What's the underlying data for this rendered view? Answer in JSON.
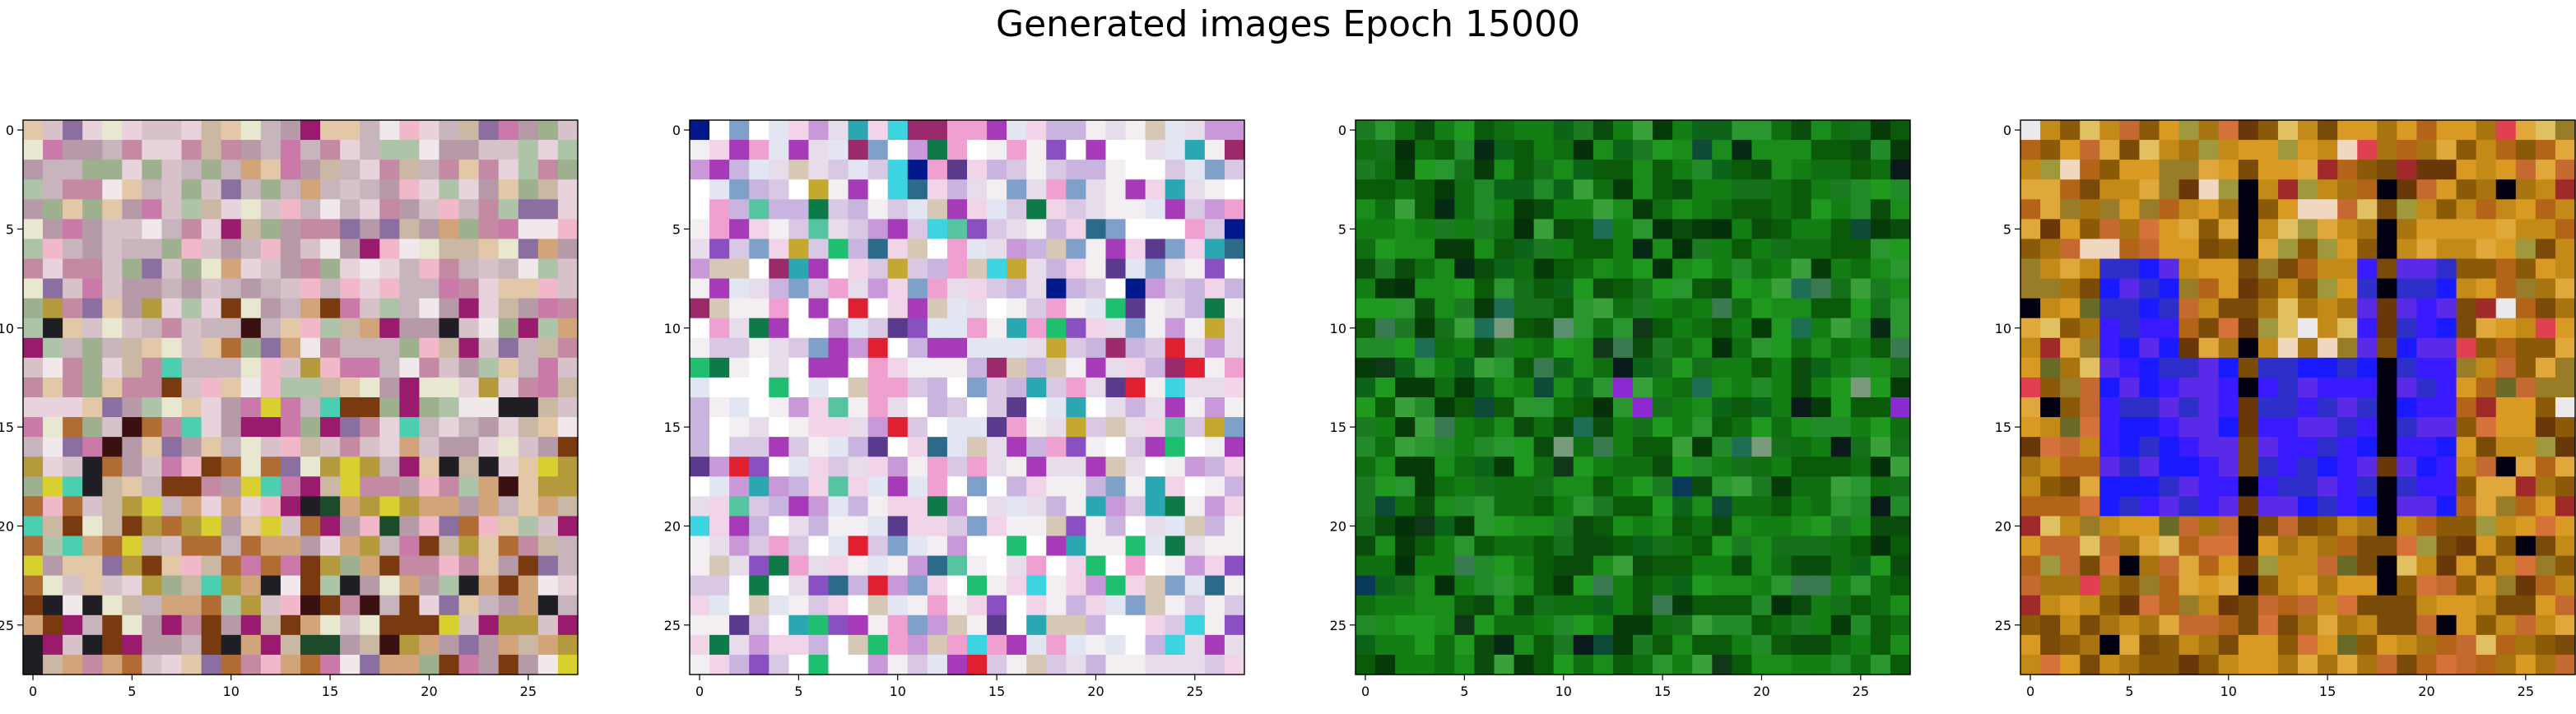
{
  "figure": {
    "title": "Generated images Epoch 15000"
  },
  "chart_data": [
    {
      "type": "heatmap",
      "title": "",
      "xlabel": "",
      "ylabel": "",
      "size": [
        28,
        28
      ],
      "xlim": [
        -0.5,
        27.5
      ],
      "ylim": [
        27.5,
        -0.5
      ],
      "xticks": [
        "0",
        "5",
        "10",
        "15",
        "20",
        "25"
      ],
      "yticks": [
        "0",
        "5",
        "10",
        "15",
        "20",
        "25"
      ],
      "grid": false,
      "legend": "none",
      "palette": [
        "#c8b4bc",
        "#d6c2c8",
        "#e8d2dc",
        "#b69aa8",
        "#cbb8a4",
        "#9fb08e",
        "#c48aa4",
        "#e3c8a8",
        "#8b6fa0",
        "#9a1a6e",
        "#d2a47a",
        "#b06c32",
        "#7a3a10",
        "#e8e8d0",
        "#f0e8ea",
        "#4bcfb0",
        "#d8d030",
        "#3a1010",
        "#1d4a2a",
        "#c97aa8",
        "#b49a3c",
        "#f0b8c8",
        "#aec4a8",
        "#1e1e24"
      ],
      "region_bias": [
        {
          "rows": [
            0,
            8
          ],
          "weights": [
            0.16,
            0.14,
            0.12,
            0.12,
            0.08,
            0.1,
            0.06,
            0.06,
            0.04,
            0.02,
            0.02,
            0.0,
            0.0,
            0.04,
            0.04,
            0.02,
            0.0,
            0.0,
            0.0,
            0.04,
            0.0,
            0.04,
            0.06,
            0.0
          ]
        },
        {
          "rows": [
            9,
            16
          ],
          "weights": [
            0.1,
            0.1,
            0.08,
            0.08,
            0.06,
            0.06,
            0.08,
            0.06,
            0.06,
            0.06,
            0.04,
            0.02,
            0.04,
            0.06,
            0.06,
            0.02,
            0.02,
            0.03,
            0.02,
            0.06,
            0.02,
            0.03,
            0.04,
            0.02
          ]
        },
        {
          "rows": [
            17,
            27
          ],
          "weights": [
            0.06,
            0.06,
            0.04,
            0.06,
            0.08,
            0.04,
            0.06,
            0.08,
            0.04,
            0.05,
            0.12,
            0.12,
            0.08,
            0.04,
            0.02,
            0.01,
            0.03,
            0.03,
            0.02,
            0.04,
            0.08,
            0.04,
            0.04,
            0.04
          ]
        }
      ]
    },
    {
      "type": "heatmap",
      "title": "",
      "xlabel": "",
      "ylabel": "",
      "size": [
        28,
        28
      ],
      "xlim": [
        -0.5,
        27.5
      ],
      "ylim": [
        27.5,
        -0.5
      ],
      "xticks": [
        "0",
        "5",
        "10",
        "15",
        "20",
        "25"
      ],
      "yticks": [
        "0",
        "5",
        "10",
        "15",
        "20",
        "25"
      ],
      "grid": false,
      "legend": "none",
      "palette": [
        "#f2eef2",
        "#e6dcea",
        "#d8c8e4",
        "#c9b4e0",
        "#f2d4e8",
        "#ffffff",
        "#e2e6f2",
        "#d6c8b4",
        "#c898d8",
        "#a63ab8",
        "#8a4fc0",
        "#3cd4e0",
        "#2aa7b0",
        "#00188a",
        "#1ec070",
        "#0e7a4a",
        "#e02030",
        "#9a2a6a",
        "#56c4a0",
        "#f0a0d0",
        "#c4a830",
        "#7fa0c8",
        "#5a3a8c",
        "#2c6a8a"
      ],
      "region_bias": [
        {
          "rows": [
            0,
            8
          ],
          "weights": [
            0.12,
            0.1,
            0.1,
            0.08,
            0.08,
            0.08,
            0.06,
            0.04,
            0.06,
            0.04,
            0.04,
            0.02,
            0.02,
            0.02,
            0.01,
            0.01,
            0.0,
            0.02,
            0.02,
            0.04,
            0.02,
            0.06,
            0.02,
            0.02
          ]
        },
        {
          "rows": [
            9,
            16
          ],
          "weights": [
            0.12,
            0.1,
            0.08,
            0.06,
            0.08,
            0.12,
            0.06,
            0.04,
            0.04,
            0.04,
            0.03,
            0.01,
            0.02,
            0.0,
            0.02,
            0.02,
            0.03,
            0.02,
            0.01,
            0.04,
            0.02,
            0.02,
            0.01,
            0.01
          ]
        },
        {
          "rows": [
            17,
            27
          ],
          "weights": [
            0.14,
            0.1,
            0.08,
            0.06,
            0.08,
            0.12,
            0.08,
            0.04,
            0.06,
            0.02,
            0.02,
            0.02,
            0.02,
            0.0,
            0.02,
            0.01,
            0.01,
            0.01,
            0.01,
            0.04,
            0.01,
            0.02,
            0.01,
            0.01
          ]
        }
      ]
    },
    {
      "type": "heatmap",
      "title": "",
      "xlabel": "",
      "ylabel": "",
      "size": [
        28,
        28
      ],
      "xlim": [
        -0.5,
        27.5
      ],
      "ylim": [
        27.5,
        -0.5
      ],
      "xticks": [
        "0",
        "5",
        "10",
        "15",
        "20",
        "25"
      ],
      "yticks": [
        "0",
        "5",
        "10",
        "15",
        "20",
        "25"
      ],
      "grid": false,
      "legend": "none",
      "palette": [
        "#0a5a0a",
        "#0e6e10",
        "#127e14",
        "#1a8c1a",
        "#1f9a1f",
        "#0a4c0c",
        "#063a08",
        "#238a2a",
        "#2a9630",
        "#0c6418",
        "#1b7a22",
        "#15701a",
        "#04300a",
        "#3a7a50",
        "#1e6e56",
        "#0e4a38",
        "#062a14",
        "#5a9070",
        "#103818",
        "#7a9a7c",
        "#0a1a1a",
        "#3aa03a",
        "#8a2ad0",
        "#0a3a5a"
      ],
      "region_bias": [
        {
          "rows": [
            0,
            8
          ],
          "weights": [
            0.14,
            0.14,
            0.12,
            0.1,
            0.06,
            0.08,
            0.06,
            0.04,
            0.04,
            0.04,
            0.04,
            0.04,
            0.02,
            0.01,
            0.01,
            0.01,
            0.01,
            0.0,
            0.01,
            0.0,
            0.01,
            0.02,
            0.0,
            0.0
          ]
        },
        {
          "rows": [
            9,
            16
          ],
          "weights": [
            0.1,
            0.1,
            0.1,
            0.08,
            0.08,
            0.06,
            0.05,
            0.06,
            0.06,
            0.04,
            0.04,
            0.04,
            0.02,
            0.02,
            0.02,
            0.02,
            0.01,
            0.01,
            0.01,
            0.01,
            0.02,
            0.04,
            0.01,
            0.0
          ]
        },
        {
          "rows": [
            17,
            27
          ],
          "weights": [
            0.12,
            0.14,
            0.12,
            0.1,
            0.08,
            0.08,
            0.06,
            0.04,
            0.04,
            0.04,
            0.04,
            0.04,
            0.02,
            0.01,
            0.0,
            0.01,
            0.01,
            0.0,
            0.01,
            0.0,
            0.01,
            0.02,
            0.0,
            0.01
          ]
        }
      ]
    },
    {
      "type": "heatmap",
      "title": "",
      "xlabel": "",
      "ylabel": "",
      "size": [
        28,
        28
      ],
      "xlim": [
        -0.5,
        27.5
      ],
      "ylim": [
        27.5,
        -0.5
      ],
      "xticks": [
        "0",
        "5",
        "10",
        "15",
        "20",
        "25"
      ],
      "yticks": [
        "0",
        "5",
        "10",
        "15",
        "20",
        "25"
      ],
      "grid": false,
      "legend": "none",
      "palette": [
        "#c48a18",
        "#d89a22",
        "#a87410",
        "#8a5a08",
        "#b46418",
        "#e0a83a",
        "#987c28",
        "#c46a30",
        "#7a4a08",
        "#e0c060",
        "#a0983c",
        "#d4723a",
        "#6a3808",
        "#e04050",
        "#1a1aff",
        "#3a1aff",
        "#5a2ae8",
        "#2e2ec8",
        "#000010",
        "#eaeaee",
        "#3ab0e0",
        "#f0d8c0",
        "#a02a2a",
        "#6a6a28"
      ],
      "region_bias": [
        {
          "rows": [
            0,
            8
          ],
          "weights": [
            0.12,
            0.12,
            0.1,
            0.08,
            0.08,
            0.08,
            0.06,
            0.05,
            0.05,
            0.04,
            0.04,
            0.04,
            0.02,
            0.02,
            0.0,
            0.0,
            0.0,
            0.0,
            0.02,
            0.01,
            0.01,
            0.02,
            0.02,
            0.02
          ]
        },
        {
          "rows": [
            9,
            16
          ],
          "weights": [
            0.1,
            0.1,
            0.08,
            0.06,
            0.06,
            0.06,
            0.04,
            0.04,
            0.04,
            0.02,
            0.02,
            0.02,
            0.02,
            0.02,
            0.0,
            0.0,
            0.0,
            0.0,
            0.02,
            0.01,
            0.01,
            0.01,
            0.02,
            0.02
          ]
        },
        {
          "rows": [
            17,
            27
          ],
          "weights": [
            0.12,
            0.12,
            0.1,
            0.08,
            0.1,
            0.06,
            0.06,
            0.08,
            0.06,
            0.02,
            0.02,
            0.06,
            0.04,
            0.02,
            0.0,
            0.0,
            0.0,
            0.0,
            0.02,
            0.0,
            0.0,
            0.0,
            0.02,
            0.02
          ]
        }
      ],
      "overlay_regions": [
        {
          "rows": [
            7,
            19
          ],
          "cols": [
            4,
            7
          ],
          "palette": [
            14,
            15,
            16,
            17
          ]
        },
        {
          "rows": [
            16,
            19
          ],
          "cols": [
            4,
            21
          ],
          "palette": [
            14,
            15,
            16,
            17
          ]
        },
        {
          "rows": [
            12,
            15
          ],
          "cols": [
            8,
            20
          ],
          "palette": [
            14,
            15,
            16,
            17
          ]
        },
        {
          "rows": [
            7,
            19
          ],
          "cols": [
            17,
            21
          ],
          "palette": [
            14,
            15,
            16,
            17
          ]
        },
        {
          "rows": [
            2,
            25
          ],
          "cols": [
            11,
            11
          ],
          "palette": [
            18,
            18,
            12,
            8
          ]
        },
        {
          "rows": [
            2,
            25
          ],
          "cols": [
            18,
            18
          ],
          "palette": [
            18,
            18,
            12,
            8
          ]
        }
      ]
    }
  ]
}
